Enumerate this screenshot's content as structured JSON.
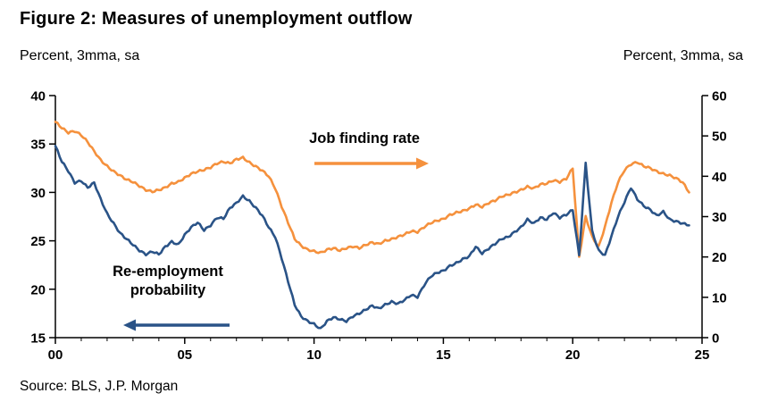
{
  "figure": {
    "title": "Figure 2: Measures of unemployment outflow",
    "left_axis_title": "Percent, 3mma, sa",
    "right_axis_title": "Percent, 3mma, sa",
    "source": "Source: BLS, J.P. Morgan"
  },
  "chart_data": {
    "type": "line",
    "x_start": 2000,
    "x_step": 0.25,
    "x_end": 2024.5,
    "x_axis": {
      "min": 2000,
      "max": 2025,
      "major_ticks": [
        2000,
        2005,
        2010,
        2015,
        2020,
        2025
      ],
      "tick_labels": [
        "00",
        "05",
        "10",
        "15",
        "20",
        "25"
      ],
      "minor_tick_every_years": 1
    },
    "left_axis": {
      "min": 15,
      "max": 40,
      "ticks": [
        15,
        20,
        25,
        30,
        35,
        40
      ]
    },
    "right_axis": {
      "min": 0,
      "max": 60,
      "ticks": [
        0,
        10,
        20,
        30,
        40,
        50,
        60
      ]
    },
    "grid": false,
    "legend": "in-plot annotations with arrows",
    "series": [
      {
        "name": "Job finding rate",
        "axis": "right",
        "color": "#F5913D",
        "values": [
          53.5,
          52.0,
          50.8,
          51.2,
          50.2,
          48.5,
          46.2,
          44.0,
          42.5,
          41.2,
          40.2,
          39.2,
          38.6,
          37.6,
          36.6,
          36.2,
          36.6,
          37.2,
          38.2,
          38.6,
          39.6,
          40.6,
          41.2,
          41.6,
          42.2,
          43.2,
          43.6,
          43.2,
          44.2,
          44.6,
          43.4,
          42.4,
          41.4,
          40.0,
          37.0,
          32.5,
          28.5,
          24.5,
          22.8,
          21.8,
          21.4,
          21.0,
          21.8,
          22.2,
          21.6,
          22.2,
          22.6,
          22.2,
          23.0,
          23.6,
          23.2,
          24.0,
          24.4,
          25.0,
          25.6,
          26.4,
          26.2,
          27.4,
          28.4,
          29.0,
          29.4,
          30.4,
          31.0,
          31.4,
          32.0,
          33.0,
          32.4,
          33.4,
          34.0,
          35.0,
          35.4,
          36.0,
          36.6,
          37.4,
          37.0,
          38.0,
          38.2,
          39.0,
          38.6,
          39.4,
          42.0,
          20.0,
          30.0,
          25.0,
          22.5,
          27.5,
          33.5,
          38.5,
          41.5,
          43.0,
          43.5,
          42.5,
          42.0,
          41.2,
          40.6,
          40.2,
          39.5,
          38.5,
          36.0
        ]
      },
      {
        "name": "Re-employment probability",
        "axis": "left",
        "color": "#2A5387",
        "values": [
          34.8,
          33.2,
          32.2,
          31.0,
          31.2,
          30.5,
          31.0,
          29.3,
          27.8,
          26.8,
          25.8,
          25.2,
          24.6,
          24.0,
          23.6,
          23.9,
          23.6,
          24.4,
          24.9,
          24.6,
          25.6,
          26.4,
          26.9,
          26.1,
          26.6,
          27.4,
          27.3,
          28.4,
          28.9,
          29.6,
          29.1,
          28.4,
          27.6,
          26.4,
          25.4,
          23.2,
          20.8,
          18.4,
          17.2,
          16.7,
          16.4,
          15.9,
          16.7,
          17.1,
          16.9,
          16.7,
          17.2,
          17.5,
          17.9,
          18.3,
          18.0,
          18.4,
          18.7,
          18.5,
          18.9,
          19.4,
          19.2,
          20.4,
          21.3,
          21.7,
          21.9,
          22.4,
          22.7,
          23.1,
          23.4,
          24.4,
          23.7,
          24.2,
          24.7,
          25.2,
          25.4,
          25.9,
          26.4,
          27.2,
          26.8,
          27.4,
          27.2,
          27.9,
          27.4,
          27.7,
          28.2,
          23.5,
          33.0,
          26.0,
          24.0,
          23.5,
          25.5,
          27.5,
          29.0,
          30.5,
          29.3,
          28.6,
          28.2,
          27.6,
          28.0,
          27.2,
          27.0,
          26.8,
          26.6
        ]
      }
    ],
    "annotations": [
      {
        "text": "Job finding rate",
        "color": "#F5913D",
        "arrow_direction": "right"
      },
      {
        "text": "Re-employment probability",
        "color": "#2A5387",
        "arrow_direction": "left"
      }
    ]
  }
}
